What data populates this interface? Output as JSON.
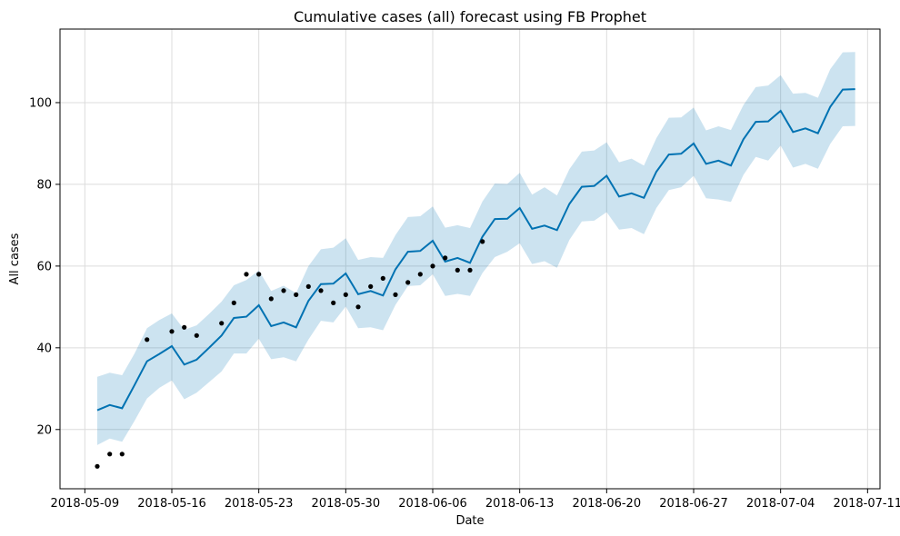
{
  "chart_data": {
    "type": "line",
    "title": "Cumulative cases (all) forecast using FB Prophet",
    "xlabel": "Date",
    "ylabel": "All cases",
    "x_start": "2018-05-10",
    "xlim": [
      "2018-05-07",
      "2018-07-12"
    ],
    "ylim": [
      5.5,
      118
    ],
    "x_ticks": [
      "2018-05-09",
      "2018-05-16",
      "2018-05-23",
      "2018-05-30",
      "2018-06-06",
      "2018-06-13",
      "2018-06-20",
      "2018-06-27",
      "2018-07-04",
      "2018-07-11"
    ],
    "y_ticks": [
      20,
      40,
      60,
      80,
      100
    ],
    "grid": true,
    "forecast": {
      "line_color": "#0072B2",
      "band_color": "#0072B2",
      "yhat": [
        24.7,
        26.0,
        25.2,
        30.9,
        36.7,
        38.5,
        40.4,
        35.9,
        37.1,
        40.0,
        43.0,
        47.3,
        47.6,
        50.4,
        45.3,
        46.2,
        45.0,
        51.5,
        55.6,
        55.7,
        58.2,
        53.1,
        53.9,
        52.8,
        59.2,
        63.5,
        63.7,
        66.2,
        61.1,
        62.0,
        60.8,
        67.2,
        71.5,
        71.6,
        74.2,
        69.1,
        69.9,
        68.8,
        75.2,
        79.4,
        79.6,
        82.1,
        77.0,
        77.8,
        76.7,
        83.1,
        87.3,
        87.5,
        90.0,
        85.0,
        85.8,
        84.6,
        91.0,
        95.3,
        95.4,
        98.0,
        92.8,
        93.7,
        92.5,
        99.0,
        103.2,
        103.3
      ],
      "yhat_lower": [
        16.2,
        17.8,
        17.0,
        22.1,
        27.6,
        30.2,
        32.0,
        27.4,
        29.0,
        31.6,
        34.2,
        38.6,
        38.6,
        42.2,
        37.2,
        37.7,
        36.7,
        42.0,
        46.6,
        46.2,
        50.1,
        44.8,
        45.0,
        44.3,
        50.5,
        55.1,
        55.3,
        58.0,
        52.7,
        53.2,
        52.7,
        58.3,
        62.2,
        63.5,
        65.6,
        60.5,
        61.2,
        59.6,
        66.4,
        70.9,
        71.1,
        73.2,
        68.9,
        69.3,
        67.8,
        74.2,
        78.6,
        79.3,
        82.1,
        76.6,
        76.3,
        75.7,
        82.3,
        86.7,
        85.8,
        89.5,
        84.1,
        85.0,
        83.8,
        89.9,
        94.2,
        94.3
      ],
      "yhat_upper": [
        32.9,
        33.9,
        33.3,
        38.6,
        44.8,
        46.8,
        48.4,
        44.4,
        45.5,
        48.3,
        51.3,
        55.3,
        56.6,
        58.9,
        53.9,
        55.2,
        53.4,
        60.0,
        64.1,
        64.5,
        66.8,
        61.5,
        62.2,
        62.0,
        67.6,
        72.0,
        72.2,
        74.6,
        69.4,
        70.0,
        69.3,
        75.8,
        80.2,
        80.1,
        82.8,
        77.5,
        79.3,
        77.3,
        83.7,
        88.0,
        88.3,
        90.3,
        85.4,
        86.3,
        84.6,
        91.3,
        96.3,
        96.4,
        98.8,
        93.2,
        94.2,
        93.3,
        99.4,
        103.8,
        104.2,
        106.7,
        102.2,
        102.4,
        101.2,
        108.2,
        112.3,
        112.4
      ]
    },
    "actual": {
      "point_color": "#000000",
      "points": [
        {
          "date": "2018-05-10",
          "value": 11
        },
        {
          "date": "2018-05-11",
          "value": 14
        },
        {
          "date": "2018-05-12",
          "value": 14
        },
        {
          "date": "2018-05-14",
          "value": 42
        },
        {
          "date": "2018-05-16",
          "value": 44
        },
        {
          "date": "2018-05-17",
          "value": 45
        },
        {
          "date": "2018-05-18",
          "value": 43
        },
        {
          "date": "2018-05-20",
          "value": 46
        },
        {
          "date": "2018-05-21",
          "value": 51
        },
        {
          "date": "2018-05-22",
          "value": 58
        },
        {
          "date": "2018-05-23",
          "value": 58
        },
        {
          "date": "2018-05-24",
          "value": 52
        },
        {
          "date": "2018-05-25",
          "value": 54
        },
        {
          "date": "2018-05-26",
          "value": 53
        },
        {
          "date": "2018-05-27",
          "value": 55
        },
        {
          "date": "2018-05-28",
          "value": 54
        },
        {
          "date": "2018-05-29",
          "value": 51
        },
        {
          "date": "2018-05-30",
          "value": 53
        },
        {
          "date": "2018-05-31",
          "value": 50
        },
        {
          "date": "2018-06-01",
          "value": 55
        },
        {
          "date": "2018-06-02",
          "value": 57
        },
        {
          "date": "2018-06-03",
          "value": 53
        },
        {
          "date": "2018-06-04",
          "value": 56
        },
        {
          "date": "2018-06-05",
          "value": 58
        },
        {
          "date": "2018-06-06",
          "value": 60
        },
        {
          "date": "2018-06-07",
          "value": 62
        },
        {
          "date": "2018-06-08",
          "value": 59
        },
        {
          "date": "2018-06-09",
          "value": 59
        },
        {
          "date": "2018-06-10",
          "value": 66
        }
      ]
    }
  }
}
